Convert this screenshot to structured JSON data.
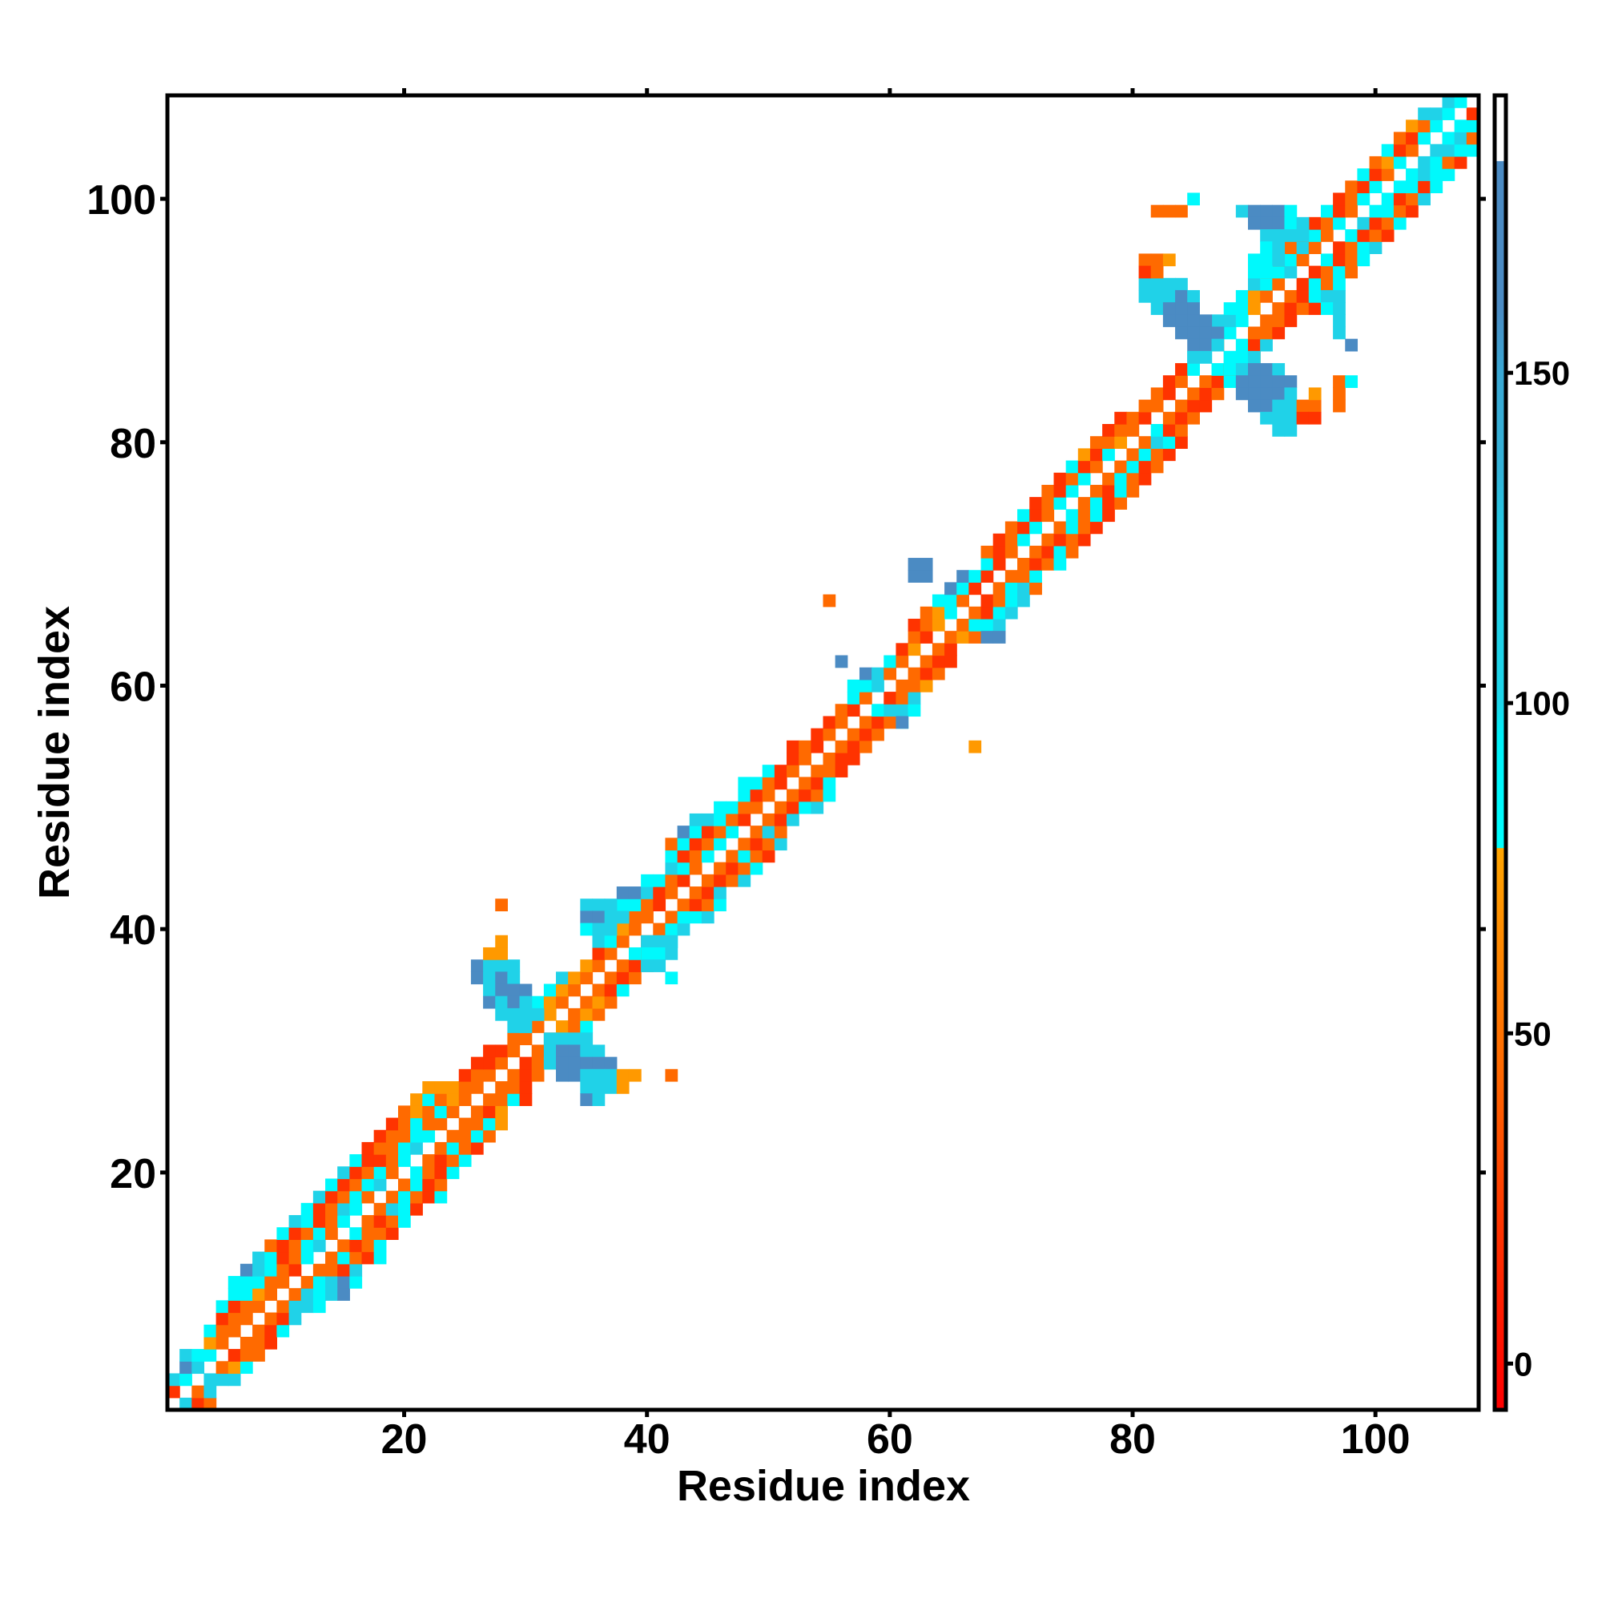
{
  "chart_data": {
    "type": "heatmap",
    "title": "",
    "xlabel": "Residue index",
    "ylabel": "Residue index",
    "xlim": [
      0.5,
      108.5
    ],
    "ylim": [
      0.5,
      108.5
    ],
    "xticks": [
      20,
      40,
      60,
      80,
      100
    ],
    "yticks": [
      20,
      40,
      60,
      80,
      100
    ],
    "colorbar": {
      "range": [
        -7,
        192
      ],
      "ticks": [
        0,
        50,
        100,
        150
      ],
      "scale": [
        {
          "v": -7,
          "color": "#ff0000"
        },
        {
          "v": 20,
          "color": "#ff3300"
        },
        {
          "v": 45,
          "color": "#ff6a00"
        },
        {
          "v": 65,
          "color": "#ff8c00"
        },
        {
          "v": 78,
          "color": "#ffa500"
        },
        {
          "v": 78.1,
          "color": "#00ffff"
        },
        {
          "v": 95,
          "color": "#00f0f8"
        },
        {
          "v": 100,
          "color": "#1ed6ea"
        },
        {
          "v": 125,
          "color": "#22cde6"
        },
        {
          "v": 135,
          "color": "#34b3d8"
        },
        {
          "v": 150,
          "color": "#3aa8d4"
        },
        {
          "v": 160,
          "color": "#4b8bc3"
        },
        {
          "v": 182,
          "color": "#4b8bc3"
        },
        {
          "v": 182.1,
          "color": "#ffffff"
        },
        {
          "v": 192,
          "color": "#ffffff"
        }
      ]
    },
    "code_values": {
      "r": 5,
      "R": 20,
      "o": 45,
      "y": 72,
      "c": 85,
      "s": 110,
      "m": 140,
      "t": 165
    },
    "band_offset_range": [
      -5,
      5
    ],
    "band_rows": [
      "......sRo..",
      "....R.os...",
      "...sc.sss..",
      "...ts.oyc..",
      "..scc.Roo..",
      "...yo.ooR..",
      "..coo.oRc..",
      "..Roo.oRs..",
      ".cRoo.ossc.",
      ".ccyo.oscst",
      "cccoo.ocstc",
      "tscoR.ooRs.",
      "scRoc.ocoRc",
      "oRocs.oRoc.",
      "cRoco.cooR.",
      "scRoc.oRoc.",
      "cRosc.oscR.",
      "sRoco.ocoRc",
      "cRocs.ocRo.",
      "sRoco.coRc.",
      "cRRoc.oRoc.",
      "Roocs.ocoR.",
      "Roocc.ooco.",
      "Rocoo.oocy.",
      "oyoco.oRy..",
      "ycoyo.oocR.",
      "yyyoo.ooR..",
      "..Roo.oRo..",
      "..RRo.Roy..",
      "..RRo.oRos.",
      "...oo.ots..",
      "...so.yoc..",
      "...sy.oyo..",
      "..cyo.oyo..",
      "..cyo.oRc..",
      "..syo.oRo..",
      "...yo.oRo..",
      "...Ro.coc..",
      "..sco.oyc..",
      "..cyo.ocs..",
      ".ssoo.occs.",
      ".ccoR.oRoc.",
      "ttsRo.oRs..",
      ".ccoR.oRos.",
      "..sco.oRoc.",
      ".cRoc.ocoR.",
      "ocRoc.oRos.",
      "tcRoc.oso..",
      "sscoR.oRs..",
      ".ccoo.oRcs.",
      "..cRo.oRoc.",
      ".ccoR.oRc..",
      "..cRo.ooR..",
      "...Ro.oRR..",
      "..RoR.oRo..",
      "...Ro.oRo..",
      "...Ro.oRoc.",
      "...oR.cssc.",
      "...co.Ros..",
      "..ccs.ooy..",
      "..tso.oRo..",
      "...co.oRR..",
      "...Ry.oR...",
      "...oR.oyo..",
      "..Roy.occs.",
      "..oyc.oRcs.",
      "..cco.Rocs.",
      "..tcR.ocso.",
      "..tcR.ooc..",
      "...cR.oRoc.",
      "..oRo.oRco.",
      "..Roc.oRoR.",
      "..oRc.ocoR.",
      "..cRo.cocR.",
      "..Roc.ocRo.",
      "..oRc.oRco.",
      "..Roc.ocoR.",
      "..cRo.ocRo.",
      "..yRc.ocoR.",
      "..ooy.oscR.",
      "..Roo.cRo..",
      "..RoR.oRo..",
      "...oo.oRR..",
      "...oR.oRo..",
      "...Ro.oRc..",
      "...Rc.coy..",
      "...sc.sRo..",
      "...oo.cRs..",
      "...sc.ooR..",
      "..ssc.ooR..",
      "..ccy.oRoR.",
      "..cyo.oRc..",
      "..sco.Rcoc.",
      "..ocs.Roco.",
      "..Rco.cRoc.",
      "..oso.Rocs.",
      "..oco.cRoR.",
      "..Roc.sRoc.",
      "..cRo.ccoR.",
      "..Roc.cRos.",
      "..oRc.ccRc.",
      "..cRo.cscc.",
      "..oyc.scoR.",
      "..cRo.sscc.",
      "..oRc.csoy.",
      "..yoc.ccss.",
      "..ssc.Ros..",
      "...sc.R...."
    ],
    "patches": [
      {
        "row": 37,
        "x0": 26,
        "codes": "tsss"
      },
      {
        "row": 36,
        "x0": 26,
        "codes": "tsts"
      },
      {
        "row": 35,
        "x0": 27,
        "codes": "sttt"
      },
      {
        "row": 34,
        "x0": 27,
        "codes": "tsts"
      },
      {
        "row": 33,
        "x0": 28,
        "codes": "ssss"
      },
      {
        "row": 32,
        "x0": 29,
        "codes": "ss"
      },
      {
        "row": 38,
        "x0": 27,
        "codes": "yy"
      },
      {
        "row": 39,
        "x0": 28,
        "codes": "y"
      },
      {
        "row": 42,
        "x0": 28,
        "codes": "o"
      },
      {
        "row": 31,
        "x0": 32,
        "codes": "ssss"
      },
      {
        "row": 30,
        "x0": 32,
        "codes": "sttss"
      },
      {
        "row": 29,
        "x0": 32,
        "codes": "sttttt"
      },
      {
        "row": 28,
        "x0": 33,
        "codes": "ttsssyy"
      },
      {
        "row": 27,
        "x0": 35,
        "codes": "sssy"
      },
      {
        "row": 26,
        "x0": 35,
        "codes": "ts"
      },
      {
        "row": 28,
        "x0": 42,
        "codes": "o"
      },
      {
        "row": 42,
        "x0": 35,
        "codes": "sss"
      },
      {
        "row": 41,
        "x0": 35,
        "codes": "ttss"
      },
      {
        "row": 40,
        "x0": 35,
        "codes": "css"
      },
      {
        "row": 39,
        "x0": 40,
        "codes": "sss"
      },
      {
        "row": 38,
        "x0": 40,
        "codes": "ccs"
      },
      {
        "row": 37,
        "x0": 40,
        "codes": "ss"
      },
      {
        "row": 36,
        "x0": 42,
        "codes": "c"
      },
      {
        "row": 67,
        "x0": 55,
        "codes": "o"
      },
      {
        "row": 55,
        "x0": 67,
        "codes": "y"
      },
      {
        "row": 62,
        "x0": 56,
        "codes": "t"
      },
      {
        "row": 57,
        "x0": 61,
        "codes": "t"
      },
      {
        "row": 70,
        "x0": 62,
        "codes": "tt"
      },
      {
        "row": 69,
        "x0": 62,
        "codes": "tt"
      },
      {
        "row": 64,
        "x0": 68,
        "codes": "tt"
      },
      {
        "row": 93,
        "x0": 81,
        "codes": "ssss"
      },
      {
        "row": 92,
        "x0": 81,
        "codes": "sssts"
      },
      {
        "row": 91,
        "x0": 82,
        "codes": "sttt"
      },
      {
        "row": 90,
        "x0": 83,
        "codes": "tttt"
      },
      {
        "row": 89,
        "x0": 84,
        "codes": "tttt"
      },
      {
        "row": 88,
        "x0": 85,
        "codes": "tts"
      },
      {
        "row": 87,
        "x0": 85,
        "codes": "ss"
      },
      {
        "row": 95,
        "x0": 81,
        "codes": "ooy"
      },
      {
        "row": 94,
        "x0": 81,
        "codes": "Ro"
      },
      {
        "row": 99,
        "x0": 82,
        "codes": "ooo"
      },
      {
        "row": 100,
        "x0": 85,
        "codes": "c"
      },
      {
        "row": 87,
        "x0": 88,
        "codes": "ccs"
      },
      {
        "row": 86,
        "x0": 88,
        "codes": "cstts"
      },
      {
        "row": 85,
        "x0": 89,
        "codes": "ttttt"
      },
      {
        "row": 84,
        "x0": 89,
        "codes": "tttts"
      },
      {
        "row": 83,
        "x0": 90,
        "codes": "ttss"
      },
      {
        "row": 82,
        "x0": 91,
        "codes": "sss"
      },
      {
        "row": 81,
        "x0": 92,
        "codes": "ss"
      },
      {
        "row": 83,
        "x0": 94,
        "codes": "oo"
      },
      {
        "row": 82,
        "x0": 94,
        "codes": "RR"
      },
      {
        "row": 84,
        "x0": 95,
        "codes": "y"
      },
      {
        "row": 83,
        "x0": 97,
        "codes": "o"
      },
      {
        "row": 84,
        "x0": 97,
        "codes": "o"
      },
      {
        "row": 85,
        "x0": 97,
        "codes": "oc"
      },
      {
        "row": 99,
        "x0": 89,
        "codes": "stttc"
      },
      {
        "row": 98,
        "x0": 90,
        "codes": "tttcs"
      },
      {
        "row": 97,
        "x0": 91,
        "codes": "ssss"
      },
      {
        "row": 96,
        "x0": 91,
        "codes": "cs"
      },
      {
        "row": 95,
        "x0": 90,
        "codes": "ccs"
      },
      {
        "row": 94,
        "x0": 90,
        "codes": "cc"
      },
      {
        "row": 92,
        "x0": 96,
        "codes": "ss"
      },
      {
        "row": 91,
        "x0": 96,
        "codes": "cs"
      },
      {
        "row": 90,
        "x0": 97,
        "codes": "s"
      },
      {
        "row": 89,
        "x0": 97,
        "codes": "s"
      },
      {
        "row": 88,
        "x0": 98,
        "codes": "t"
      }
    ]
  }
}
